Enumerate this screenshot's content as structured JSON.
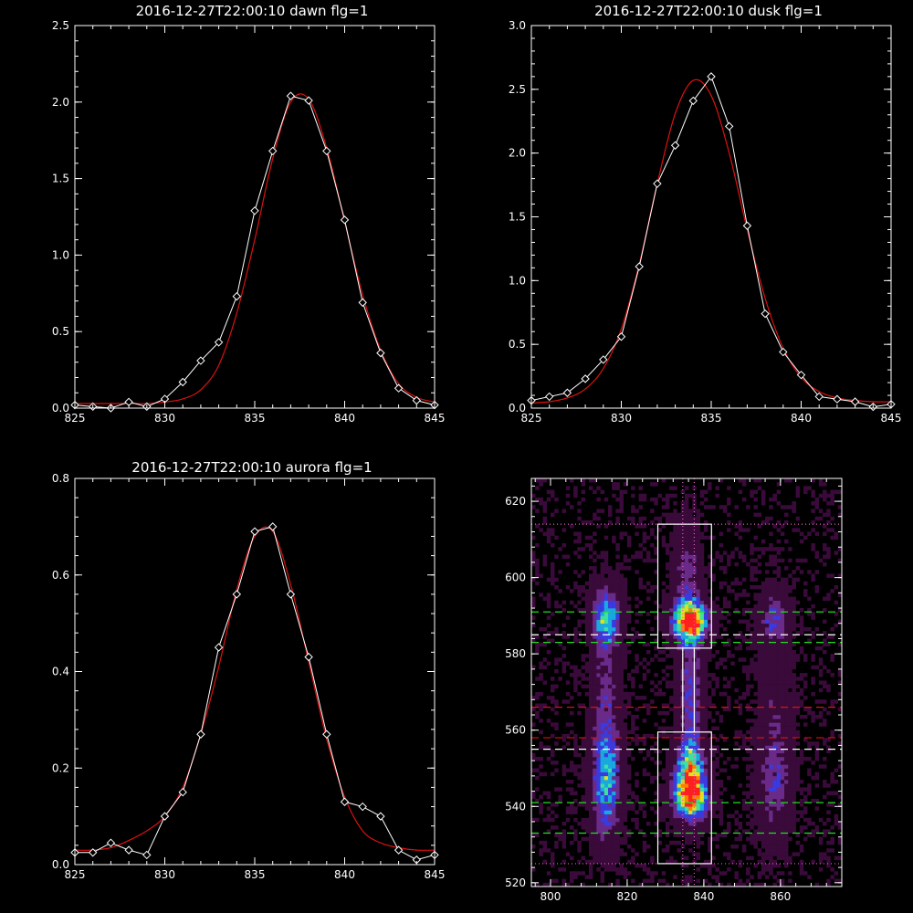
{
  "chart_data": [
    {
      "type": "line",
      "title": "2016-12-27T22:00:10 dawn flg=1",
      "xlim": [
        825,
        845
      ],
      "ylim": [
        0,
        2.5
      ],
      "xticks": [
        "825",
        "830",
        "835",
        "840",
        "845"
      ],
      "yticks": [
        "0.0",
        "0.5",
        "1.0",
        "1.5",
        "2.0",
        "2.5"
      ],
      "grid": false,
      "series": [
        {
          "kind": "data",
          "color": "#ffffff",
          "marker": "diamond",
          "x": [
            825,
            826,
            827,
            828,
            829,
            830,
            831,
            832,
            833,
            834,
            835,
            836,
            837,
            838,
            839,
            840,
            841,
            842,
            843,
            844,
            845
          ],
          "y": [
            0.02,
            0.01,
            0.0,
            0.04,
            0.01,
            0.06,
            0.17,
            0.31,
            0.43,
            0.73,
            1.29,
            1.68,
            2.04,
            2.01,
            1.68,
            1.23,
            0.69,
            0.36,
            0.13,
            0.05,
            0.02
          ]
        },
        {
          "kind": "fit",
          "color": "#dd1111",
          "x": [
            825,
            826,
            827,
            828,
            829,
            830,
            831,
            832,
            833,
            834,
            835,
            836,
            837,
            838,
            839,
            840,
            841,
            842,
            843,
            844,
            845
          ],
          "y": [
            0.03,
            0.03,
            0.03,
            0.03,
            0.03,
            0.04,
            0.06,
            0.12,
            0.28,
            0.62,
            1.1,
            1.63,
            2.0,
            2.02,
            1.7,
            1.22,
            0.74,
            0.38,
            0.16,
            0.07,
            0.04
          ]
        }
      ]
    },
    {
      "type": "line",
      "title": "2016-12-27T22:00:10 dusk flg=1",
      "xlim": [
        825,
        845
      ],
      "ylim": [
        0,
        3.0
      ],
      "xticks": [
        "825",
        "830",
        "835",
        "840",
        "845"
      ],
      "yticks": [
        "0.0",
        "0.5",
        "1.0",
        "1.5",
        "2.0",
        "2.5",
        "3.0"
      ],
      "grid": false,
      "series": [
        {
          "kind": "data",
          "color": "#ffffff",
          "marker": "diamond",
          "x": [
            825,
            826,
            827,
            828,
            829,
            830,
            831,
            832,
            833,
            834,
            835,
            836,
            837,
            838,
            839,
            840,
            841,
            842,
            843,
            844,
            845
          ],
          "y": [
            0.06,
            0.09,
            0.12,
            0.23,
            0.38,
            0.56,
            1.11,
            1.76,
            2.06,
            2.41,
            2.6,
            2.21,
            1.43,
            0.74,
            0.44,
            0.26,
            0.09,
            0.07,
            0.05,
            0.01,
            0.03
          ]
        },
        {
          "kind": "fit",
          "color": "#dd1111",
          "x": [
            825,
            826,
            827,
            828,
            829,
            830,
            831,
            832,
            833,
            834,
            835,
            836,
            837,
            838,
            839,
            840,
            841,
            842,
            843,
            844,
            845
          ],
          "y": [
            0.04,
            0.05,
            0.08,
            0.15,
            0.31,
            0.62,
            1.13,
            1.76,
            2.31,
            2.57,
            2.45,
            2.0,
            1.4,
            0.86,
            0.47,
            0.24,
            0.13,
            0.08,
            0.06,
            0.05,
            0.05
          ]
        }
      ]
    },
    {
      "type": "line",
      "title": "2016-12-27T22:00:10 aurora flg=1",
      "xlim": [
        825,
        845
      ],
      "ylim": [
        0,
        0.8
      ],
      "xticks": [
        "825",
        "830",
        "835",
        "840",
        "845"
      ],
      "yticks": [
        "0.0",
        "0.2",
        "0.4",
        "0.6",
        "0.8"
      ],
      "grid": false,
      "series": [
        {
          "kind": "data",
          "color": "#ffffff",
          "marker": "diamond",
          "x": [
            825,
            826,
            827,
            828,
            829,
            830,
            831,
            832,
            833,
            834,
            835,
            836,
            837,
            838,
            839,
            840,
            841,
            842,
            843,
            844,
            845
          ],
          "y": [
            0.025,
            0.025,
            0.045,
            0.03,
            0.02,
            0.1,
            0.15,
            0.27,
            0.45,
            0.56,
            0.69,
            0.7,
            0.56,
            0.43,
            0.27,
            0.13,
            0.12,
            0.1,
            0.03,
            0.01,
            0.02
          ]
        },
        {
          "kind": "fit",
          "color": "#dd1111",
          "x": [
            825,
            826,
            827,
            828,
            829,
            830,
            831,
            832,
            833,
            834,
            835,
            836,
            837,
            838,
            839,
            840,
            841,
            842,
            843,
            844,
            845
          ],
          "y": [
            0.03,
            0.03,
            0.035,
            0.05,
            0.07,
            0.1,
            0.16,
            0.27,
            0.41,
            0.57,
            0.68,
            0.69,
            0.58,
            0.42,
            0.26,
            0.14,
            0.07,
            0.045,
            0.035,
            0.03,
            0.03
          ]
        }
      ]
    },
    {
      "type": "heatmap",
      "title": "",
      "xlim": [
        795,
        876
      ],
      "ylim": [
        519,
        626
      ],
      "xticks": [
        "800",
        "820",
        "840",
        "860"
      ],
      "yticks": [
        "520",
        "540",
        "560",
        "580",
        "600",
        "620"
      ],
      "grid": false,
      "colormap": [
        "#000000",
        "#3a0a3a",
        "#6a2a8a",
        "#3a3ae0",
        "#1aa8e0",
        "#40e0a0",
        "#e0e020",
        "#ff8000",
        "#ff2020"
      ],
      "blobs": [
        {
          "x": 836,
          "y": 588,
          "sx": 3.0,
          "sy": 3.5,
          "amp": 1.0
        },
        {
          "x": 836,
          "y": 542,
          "sx": 3.0,
          "sy": 4.0,
          "amp": 1.0
        },
        {
          "x": 836,
          "y": 550,
          "sx": 2.5,
          "sy": 5.0,
          "amp": 0.6
        },
        {
          "x": 836,
          "y": 568,
          "sx": 2.2,
          "sy": 12.0,
          "amp": 0.35
        },
        {
          "x": 835,
          "y": 600,
          "sx": 2.5,
          "sy": 10.0,
          "amp": 0.25
        },
        {
          "x": 814,
          "y": 589,
          "sx": 2.5,
          "sy": 5.0,
          "amp": 0.55
        },
        {
          "x": 814,
          "y": 545,
          "sx": 2.5,
          "sy": 10.0,
          "amp": 0.5
        },
        {
          "x": 814,
          "y": 568,
          "sx": 2.5,
          "sy": 14.0,
          "amp": 0.25
        },
        {
          "x": 858,
          "y": 589,
          "sx": 2.5,
          "sy": 4.0,
          "amp": 0.3
        },
        {
          "x": 858,
          "y": 545,
          "sx": 3.0,
          "sy": 10.0,
          "amp": 0.25
        },
        {
          "x": 858,
          "y": 568,
          "sx": 3.0,
          "sy": 18.0,
          "amp": 0.15
        }
      ],
      "boxes": [
        {
          "x0": 828,
          "x1": 842,
          "y0": 581.5,
          "y1": 614,
          "color": "#ffffff"
        },
        {
          "x0": 828,
          "x1": 842,
          "y0": 525,
          "y1": 559.5,
          "color": "#ffffff"
        },
        {
          "x0": 834.5,
          "x1": 837.5,
          "y0": 559.5,
          "y1": 581.5,
          "color": "#ffffff"
        }
      ],
      "hlines": [
        {
          "y": 614,
          "color": "#e060c0",
          "style": "dotted"
        },
        {
          "y": 525,
          "color": "#e060c0",
          "style": "dotted"
        },
        {
          "y": 591,
          "color": "#22dd22",
          "style": "dashed"
        },
        {
          "y": 583,
          "color": "#22dd22",
          "style": "dashed"
        },
        {
          "y": 541,
          "color": "#22dd22",
          "style": "dashed"
        },
        {
          "y": 533,
          "color": "#22dd22",
          "style": "dashed"
        },
        {
          "y": 585,
          "color": "#ffffff",
          "style": "dashed"
        },
        {
          "y": 555,
          "color": "#ffffff",
          "style": "dashed"
        },
        {
          "y": 566,
          "color": "#dd1111",
          "style": "dashed"
        },
        {
          "y": 558,
          "color": "#dd1111",
          "style": "dashed"
        }
      ],
      "vlines": [
        {
          "x": 834.5,
          "color": "#e060c0",
          "style": "dotted"
        },
        {
          "x": 837.5,
          "color": "#e060c0",
          "style": "dotted"
        }
      ]
    }
  ]
}
